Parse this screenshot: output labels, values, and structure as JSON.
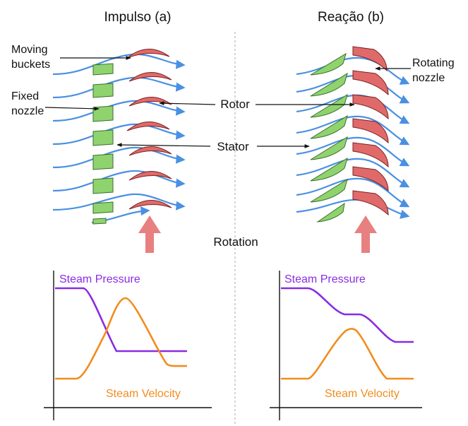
{
  "titles": {
    "impulse": "Impulso (a)",
    "reaction": "Reação (b)"
  },
  "labels": {
    "moving_buckets_1": "Moving",
    "moving_buckets_2": "buckets",
    "fixed_nozzle_1": "Fixed",
    "fixed_nozzle_2": "nozzle",
    "rotating_nozzle_1": "Rotating",
    "rotating_nozzle_2": "nozzle",
    "rotor": "Rotor",
    "stator": "Stator",
    "rotation": "Rotation"
  },
  "graphs": {
    "pressure_label": "Steam Pressure",
    "velocity_label": "Steam Velocity"
  },
  "colors": {
    "stator_fill": "#8fd36f",
    "rotor_fill": "#e06a6a",
    "flow": "#4a90e2",
    "rotation_arrow": "#e88080",
    "pressure": "#8a2be2",
    "velocity": "#f28c1e",
    "divider": "#aaaaaa"
  }
}
